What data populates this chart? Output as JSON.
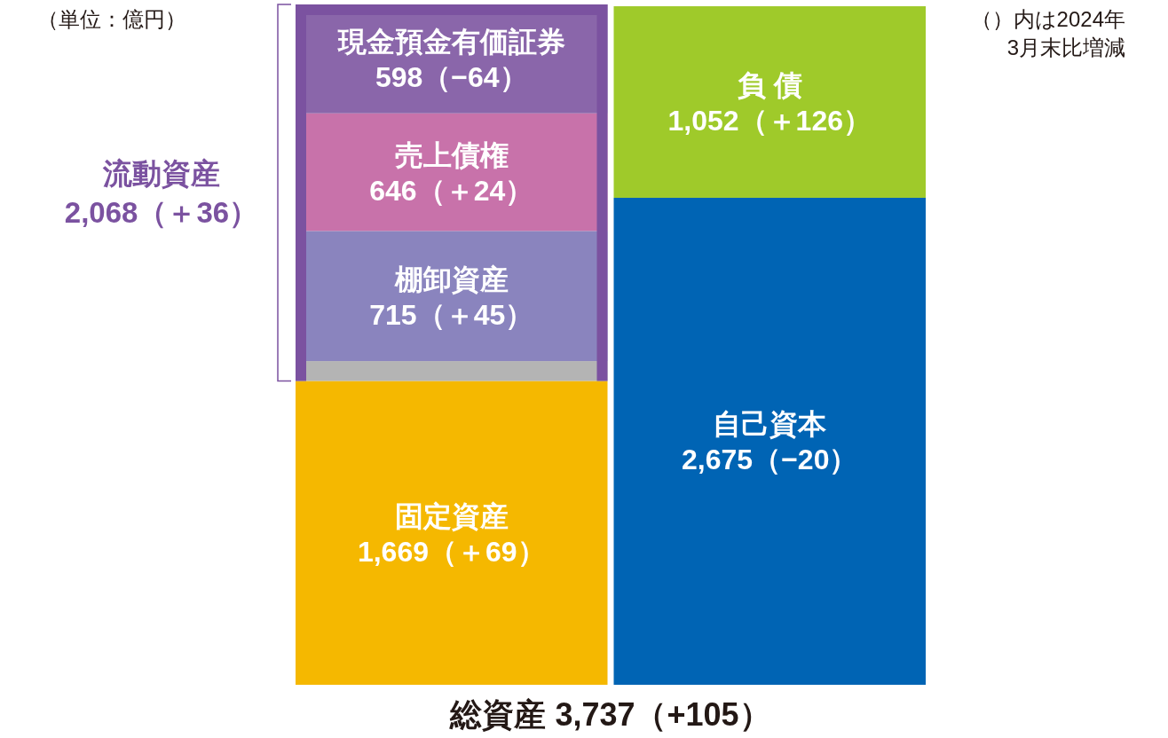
{
  "chart_data": {
    "type": "bar",
    "stacked": true,
    "categories": [
      null,
      null
    ],
    "ylim": [
      0,
      3737
    ],
    "tick_labels": false,
    "series": [
      {
        "name": "固定資産",
        "color": "#f5b800",
        "values": [
          1669,
          null
        ],
        "value_labels": [
          "1,669（＋69）",
          null
        ]
      },
      {
        "color": "#b4b4b4",
        "values": [
          109,
          null
        ]
      },
      {
        "name": "棚卸資産",
        "color": "#8a84be",
        "values": [
          715,
          null
        ],
        "value_labels": [
          "715（＋45）",
          null
        ]
      },
      {
        "name": "売上債権",
        "color": "#c872aa",
        "values": [
          646,
          null
        ],
        "value_labels": [
          "646（＋24）",
          null
        ]
      },
      {
        "name": "現金預金有価証券",
        "color": "#8a66aa",
        "values": [
          598,
          null
        ],
        "value_labels": [
          "598（−64）",
          null
        ]
      },
      {
        "name": "自己資本",
        "color": "#0064b4",
        "values": [
          null,
          2675
        ],
        "value_labels": [
          null,
          "2,675（−20）"
        ]
      },
      {
        "name": "負 債",
        "color": "#9fca2a",
        "values": [
          null,
          1052
        ],
        "value_labels": [
          null,
          "1,052（＋126）"
        ]
      }
    ],
    "annotations": [
      "（単位：億円）",
      "（）内は2024年3月末比増減",
      "流動資産 2,068（＋36）",
      "総資産 3,737（+105）"
    ]
  }
}
